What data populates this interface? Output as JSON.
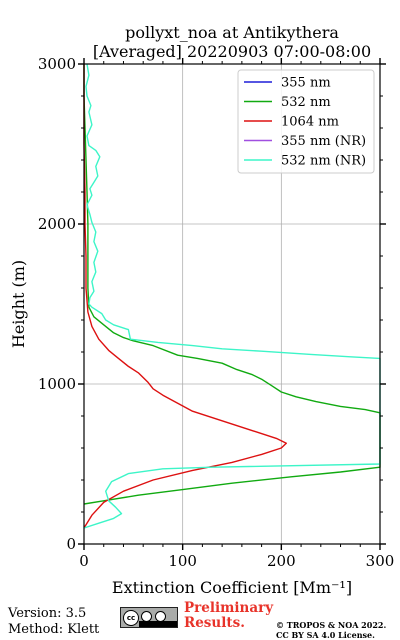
{
  "chart_data": {
    "type": "line",
    "title_line1": "pollyxt_noa at Antikythera",
    "title_line2": "[Averaged] 20220903 07:00-08:00",
    "xlabel": "Extinction Coefficient [Mm⁻¹]",
    "ylabel": "Height (m)",
    "xlim": [
      0,
      300
    ],
    "ylim": [
      0,
      3000
    ],
    "x_ticks": [
      0,
      100,
      200,
      300
    ],
    "y_ticks": [
      0,
      1000,
      2000,
      3000
    ],
    "grid": true,
    "legend_position": "top-right",
    "series": [
      {
        "name": "355 nm",
        "color": "#1f1fd8",
        "points": []
      },
      {
        "name": "532 nm",
        "color": "#11aa11",
        "points": [
          [
            0,
            250
          ],
          [
            20,
            270
          ],
          [
            55,
            305
          ],
          [
            100,
            340
          ],
          [
            150,
            380
          ],
          [
            210,
            420
          ],
          [
            260,
            450
          ],
          [
            300,
            480
          ],
          [
            300,
            820
          ],
          [
            285,
            840
          ],
          [
            260,
            860
          ],
          [
            235,
            890
          ],
          [
            215,
            920
          ],
          [
            200,
            950
          ],
          [
            190,
            990
          ],
          [
            180,
            1030
          ],
          [
            170,
            1060
          ],
          [
            155,
            1090
          ],
          [
            140,
            1130
          ],
          [
            115,
            1160
          ],
          [
            95,
            1180
          ],
          [
            70,
            1240
          ],
          [
            50,
            1270
          ],
          [
            40,
            1290
          ],
          [
            30,
            1320
          ],
          [
            20,
            1370
          ],
          [
            10,
            1420
          ],
          [
            5,
            1480
          ],
          [
            4,
            1600
          ],
          [
            4,
            1800
          ],
          [
            4,
            2000
          ],
          [
            3,
            2200
          ],
          [
            2,
            2400
          ],
          [
            1,
            2600
          ],
          [
            0,
            2800
          ],
          [
            0,
            3000
          ]
        ]
      },
      {
        "name": "1064 nm",
        "color": "#dd1111",
        "points": [
          [
            0,
            100
          ],
          [
            8,
            180
          ],
          [
            20,
            260
          ],
          [
            40,
            330
          ],
          [
            70,
            400
          ],
          [
            110,
            460
          ],
          [
            150,
            510
          ],
          [
            180,
            560
          ],
          [
            200,
            600
          ],
          [
            205,
            630
          ],
          [
            195,
            660
          ],
          [
            170,
            710
          ],
          [
            140,
            770
          ],
          [
            110,
            830
          ],
          [
            95,
            880
          ],
          [
            80,
            930
          ],
          [
            70,
            970
          ],
          [
            65,
            1010
          ],
          [
            55,
            1070
          ],
          [
            45,
            1110
          ],
          [
            35,
            1160
          ],
          [
            25,
            1210
          ],
          [
            15,
            1280
          ],
          [
            8,
            1360
          ],
          [
            4,
            1450
          ],
          [
            2,
            1600
          ],
          [
            2,
            1800
          ],
          [
            1,
            2000
          ],
          [
            1,
            2200
          ],
          [
            0,
            2500
          ],
          [
            0,
            2800
          ],
          [
            0,
            3000
          ]
        ]
      },
      {
        "name": "355 nm (NR)",
        "color": "#a04fe0",
        "points": []
      },
      {
        "name": "532 nm (NR)",
        "color": "#3df5c8",
        "points": [
          [
            0,
            100
          ],
          [
            15,
            130
          ],
          [
            30,
            160
          ],
          [
            38,
            190
          ],
          [
            32,
            230
          ],
          [
            25,
            270
          ],
          [
            22,
            330
          ],
          [
            28,
            390
          ],
          [
            45,
            440
          ],
          [
            80,
            470
          ],
          [
            130,
            480
          ],
          [
            300,
            500
          ],
          [
            300,
            1160
          ],
          [
            270,
            1170
          ],
          [
            230,
            1185
          ],
          [
            180,
            1205
          ],
          [
            140,
            1220
          ],
          [
            110,
            1240
          ],
          [
            75,
            1260
          ],
          [
            47,
            1280
          ],
          [
            45,
            1340
          ],
          [
            30,
            1370
          ],
          [
            22,
            1400
          ],
          [
            18,
            1440
          ],
          [
            8,
            1480
          ],
          [
            5,
            1500
          ],
          [
            6,
            1540
          ],
          [
            10,
            1580
          ],
          [
            8,
            1640
          ],
          [
            12,
            1700
          ],
          [
            10,
            1760
          ],
          [
            14,
            1830
          ],
          [
            10,
            1890
          ],
          [
            12,
            1950
          ],
          [
            8,
            2010
          ],
          [
            6,
            2060
          ],
          [
            3,
            2120
          ],
          [
            8,
            2180
          ],
          [
            6,
            2220
          ],
          [
            10,
            2260
          ],
          [
            14,
            2300
          ],
          [
            12,
            2360
          ],
          [
            16,
            2420
          ],
          [
            12,
            2460
          ],
          [
            5,
            2490
          ],
          [
            3,
            2550
          ],
          [
            8,
            2620
          ],
          [
            5,
            2700
          ],
          [
            7,
            2740
          ],
          [
            3,
            2800
          ],
          [
            2,
            2860
          ],
          [
            5,
            2930
          ],
          [
            3,
            3000
          ]
        ]
      }
    ]
  },
  "footer": {
    "version": "Version: 3.5",
    "method": "Method: Klett",
    "preliminary_line1": "Preliminary",
    "preliminary_line2": "Results.",
    "copyright_line1": "© TROPOS & NOA 2022.",
    "copyright_line2": "CC BY SA 4.0 License.",
    "license_logo": "cc-by-sa-logo",
    "license_logo_text": "cc"
  }
}
